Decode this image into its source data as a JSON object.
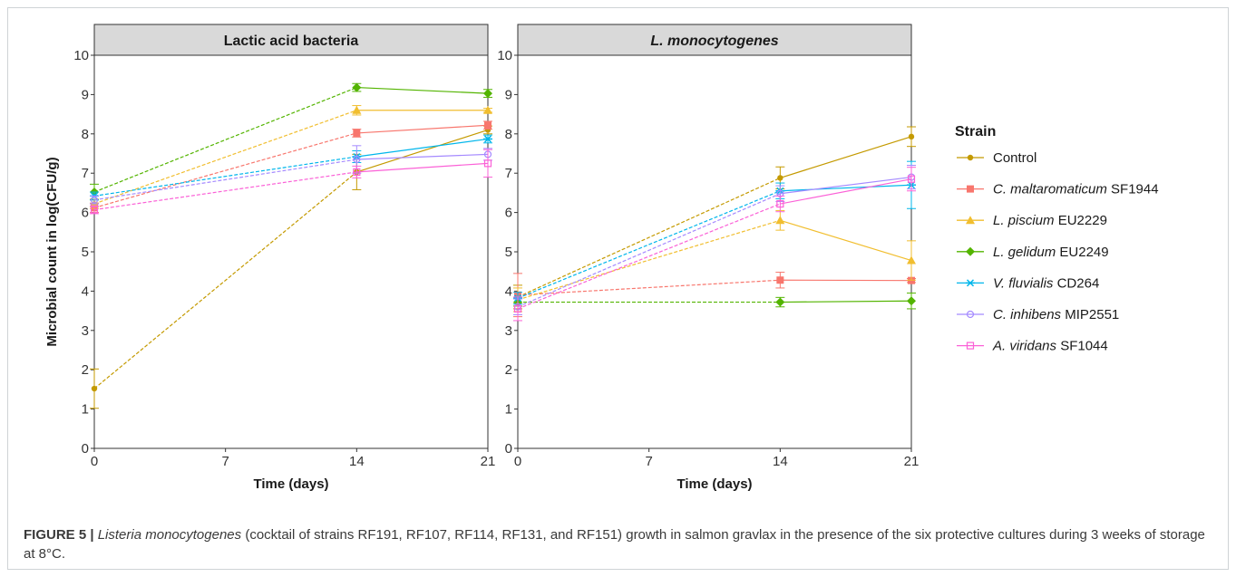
{
  "chart_data": [
    {
      "type": "line",
      "title": "Lactic acid bacteria",
      "xlabel": "Time (days)",
      "ylabel": "Microbial count in log(CFU/g)",
      "xlim": [
        0,
        21
      ],
      "ylim": [
        0,
        10
      ],
      "xticks": [
        "0",
        "7",
        "14",
        "21"
      ],
      "yticks": [
        "0",
        "1",
        "2",
        "3",
        "4",
        "5",
        "6",
        "7",
        "8",
        "9",
        "10"
      ],
      "x": [
        0,
        14,
        21
      ],
      "series": [
        {
          "name": "Control",
          "color": "#C49A00",
          "values": [
            1.52,
            7.03,
            8.1
          ],
          "error": [
            0.5,
            0.45,
            0.1
          ]
        },
        {
          "name": "C. maltaromaticum SF1944",
          "color": "#F8766D",
          "values": [
            6.12,
            8.02,
            8.22
          ],
          "error": [
            0.12,
            0.1,
            0.1
          ]
        },
        {
          "name": "L. piscium EU2229",
          "color": "#F1BE2F",
          "values": [
            6.22,
            8.6,
            8.6
          ],
          "error": [
            0.12,
            0.12,
            0.05
          ]
        },
        {
          "name": "L. gelidum EU2249",
          "color": "#53B400",
          "values": [
            6.52,
            9.18,
            9.03
          ],
          "error": [
            0.2,
            0.1,
            0.1
          ]
        },
        {
          "name": "V. fluvialis CD264",
          "color": "#00B6EB",
          "values": [
            6.42,
            7.42,
            7.87
          ],
          "error": [
            0.1,
            0.15,
            0.1
          ]
        },
        {
          "name": "C. inhibens MIP2551",
          "color": "#A58AFF",
          "values": [
            6.32,
            7.35,
            7.48
          ],
          "error": [
            0.1,
            0.35,
            0.15
          ]
        },
        {
          "name": "A. viridans SF1044",
          "color": "#FB61D7",
          "values": [
            6.07,
            7.03,
            7.25
          ],
          "error": [
            0.1,
            0.15,
            0.35
          ]
        }
      ]
    },
    {
      "type": "line",
      "title": "L. monocytogenes",
      "xlabel": "Time (days)",
      "ylabel": "",
      "xlim": [
        0,
        21
      ],
      "ylim": [
        0,
        10
      ],
      "xticks": [
        "0",
        "7",
        "14",
        "21"
      ],
      "yticks": [
        "0",
        "1",
        "2",
        "3",
        "4",
        "5",
        "6",
        "7",
        "8",
        "9",
        "10"
      ],
      "x": [
        0,
        14,
        21
      ],
      "series": [
        {
          "name": "Control",
          "color": "#C49A00",
          "values": [
            3.85,
            6.88,
            7.93
          ],
          "error": [
            0.3,
            0.28,
            0.25
          ]
        },
        {
          "name": "C. maltaromaticum SF1944",
          "color": "#F8766D",
          "values": [
            3.9,
            4.28,
            4.27
          ],
          "error": [
            0.55,
            0.2,
            0.05
          ]
        },
        {
          "name": "L. piscium EU2229",
          "color": "#F1BE2F",
          "values": [
            3.78,
            5.8,
            4.78
          ],
          "error": [
            0.3,
            0.25,
            0.5
          ]
        },
        {
          "name": "L. gelidum EU2249",
          "color": "#53B400",
          "values": [
            3.72,
            3.72,
            3.75
          ],
          "error": [
            0.1,
            0.12,
            0.2
          ]
        },
        {
          "name": "V. fluvialis CD264",
          "color": "#00B6EB",
          "values": [
            3.82,
            6.55,
            6.7
          ],
          "error": [
            0.15,
            0.2,
            0.6
          ]
        },
        {
          "name": "C. inhibens MIP2551",
          "color": "#A58AFF",
          "values": [
            3.6,
            6.48,
            6.9
          ],
          "error": [
            0.2,
            0.2,
            0.3
          ]
        },
        {
          "name": "A. viridans SF1044",
          "color": "#FB61D7",
          "values": [
            3.55,
            6.22,
            6.85
          ],
          "error": [
            0.3,
            0.2,
            0.3
          ]
        }
      ]
    }
  ],
  "legend": {
    "title": "Strain",
    "position": "right",
    "items": [
      {
        "italic": "",
        "plain": "Control",
        "color": "#C49A00",
        "marker": "circle"
      },
      {
        "italic": "C. maltaromaticum",
        "plain": " SF1944",
        "color": "#F8766D",
        "marker": "square"
      },
      {
        "italic": "L. piscium",
        "plain": " EU2229",
        "color": "#F1BE2F",
        "marker": "triangle"
      },
      {
        "italic": "L. gelidum",
        "plain": " EU2249",
        "color": "#53B400",
        "marker": "diamond"
      },
      {
        "italic": "V. fluvialis",
        "plain": " CD264",
        "color": "#00B6EB",
        "marker": "star"
      },
      {
        "italic": "C. inhibens",
        "plain": " MIP2551",
        "color": "#A58AFF",
        "marker": "circle-open"
      },
      {
        "italic": "A. viridans",
        "plain": " SF1044",
        "color": "#FB61D7",
        "marker": "square-open"
      }
    ]
  },
  "caption": {
    "label": "FIGURE 5 |",
    "species": "Listeria monocytogenes",
    "text": " (cocktail of strains RF191, RF107, RF114, RF131, and RF151) growth in salmon gravlax in the presence of the six protective cultures during 3 weeks of storage at 8°C."
  }
}
